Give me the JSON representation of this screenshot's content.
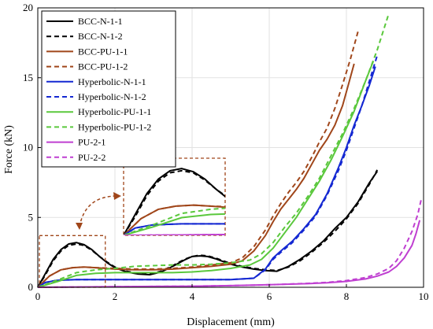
{
  "chart_data": {
    "type": "line",
    "xlabel": "Displacement (mm)",
    "ylabel": "Force (kN)",
    "xlim": [
      0,
      10
    ],
    "ylim": [
      0,
      20
    ],
    "xticks": [
      0,
      2,
      4,
      6,
      8,
      10
    ],
    "yticks": [
      0,
      5,
      10,
      15,
      20
    ],
    "grid": true,
    "legend_position": "top-left",
    "series": [
      {
        "name": "BCC-N-1-1",
        "color": "#000000",
        "dash": "solid",
        "x": [
          0,
          0.2,
          0.4,
          0.6,
          0.8,
          1.0,
          1.2,
          1.4,
          1.6,
          1.8,
          2.0,
          2.3,
          2.6,
          2.9,
          3.2,
          3.5,
          3.8,
          4.0,
          4.2,
          4.4,
          4.6,
          4.8,
          5.0,
          5.3,
          5.6,
          5.9,
          6.2,
          6.5,
          6.8,
          7.1,
          7.4,
          7.7,
          8.0,
          8.3,
          8.6,
          8.8
        ],
        "y": [
          0,
          1.0,
          2.0,
          2.7,
          3.1,
          3.2,
          3.05,
          2.7,
          2.2,
          1.75,
          1.4,
          1.1,
          0.95,
          0.9,
          1.1,
          1.5,
          1.95,
          2.2,
          2.25,
          2.2,
          2.05,
          1.85,
          1.65,
          1.45,
          1.3,
          1.2,
          1.15,
          1.5,
          2.0,
          2.6,
          3.3,
          4.2,
          5.0,
          6.1,
          7.5,
          8.3
        ]
      },
      {
        "name": "BCC-N-1-2",
        "color": "#000000",
        "dash": "dashed",
        "x": [
          0,
          0.2,
          0.4,
          0.6,
          0.8,
          1.0,
          1.2,
          1.4,
          1.6,
          1.8,
          2.0,
          2.3,
          2.6,
          2.9,
          3.2,
          3.5,
          3.8,
          4.0,
          4.2,
          4.4,
          4.6,
          4.8,
          5.0,
          5.3,
          5.6,
          5.9,
          6.2,
          6.5,
          6.8,
          7.1,
          7.4,
          7.7,
          8.0,
          8.3,
          8.6,
          8.8
        ],
        "y": [
          0,
          0.9,
          1.9,
          2.6,
          3.0,
          3.1,
          3.0,
          2.65,
          2.2,
          1.8,
          1.45,
          1.15,
          1.0,
          0.95,
          1.15,
          1.55,
          2.0,
          2.2,
          2.3,
          2.25,
          2.1,
          1.9,
          1.7,
          1.5,
          1.35,
          1.25,
          1.2,
          1.45,
          1.9,
          2.5,
          3.2,
          4.0,
          4.9,
          6.0,
          7.4,
          8.4
        ]
      },
      {
        "name": "BCC-PU-1-1",
        "color": "#a0461a",
        "dash": "solid",
        "x": [
          0,
          0.3,
          0.6,
          0.9,
          1.2,
          1.5,
          2.0,
          2.5,
          3.0,
          3.5,
          4.0,
          4.5,
          5.0,
          5.3,
          5.6,
          5.9,
          6.1,
          6.3,
          6.5,
          6.7,
          6.9,
          7.1,
          7.3,
          7.5,
          7.7,
          7.9,
          8.05,
          8.2
        ],
        "y": [
          0,
          0.8,
          1.25,
          1.4,
          1.45,
          1.4,
          1.3,
          1.25,
          1.25,
          1.3,
          1.4,
          1.5,
          1.65,
          1.9,
          2.6,
          3.7,
          4.7,
          5.6,
          6.3,
          7.0,
          7.8,
          8.8,
          9.8,
          10.6,
          11.6,
          13.0,
          14.5,
          16.0
        ]
      },
      {
        "name": "BCC-PU-1-2",
        "color": "#a0461a",
        "dash": "dashed",
        "x": [
          0,
          0.3,
          0.6,
          0.9,
          1.2,
          1.5,
          2.0,
          2.5,
          3.0,
          3.5,
          4.0,
          4.5,
          5.0,
          5.3,
          5.6,
          5.9,
          6.1,
          6.3,
          6.5,
          6.7,
          6.9,
          7.1,
          7.3,
          7.5,
          7.7,
          7.9,
          8.1,
          8.3
        ],
        "y": [
          0,
          0.8,
          1.25,
          1.4,
          1.45,
          1.4,
          1.35,
          1.3,
          1.3,
          1.35,
          1.45,
          1.6,
          1.75,
          2.1,
          2.9,
          4.1,
          5.1,
          6.0,
          6.8,
          7.5,
          8.3,
          9.3,
          10.4,
          11.4,
          12.8,
          14.5,
          16.3,
          18.3
        ]
      },
      {
        "name": "Hyperbolic-N-1-1",
        "color": "#1428d2",
        "dash": "solid",
        "x": [
          0,
          0.2,
          0.5,
          1.0,
          1.5,
          2.0,
          3.0,
          4.0,
          5.0,
          5.6,
          5.9,
          6.1,
          6.3,
          6.6,
          6.9,
          7.2,
          7.5,
          7.8,
          8.0,
          8.2,
          8.4,
          8.6,
          8.75
        ],
        "y": [
          0,
          0.35,
          0.5,
          0.55,
          0.55,
          0.55,
          0.55,
          0.55,
          0.55,
          0.65,
          1.3,
          2.1,
          2.6,
          3.3,
          4.2,
          5.2,
          6.7,
          8.6,
          10.0,
          11.6,
          13.0,
          14.5,
          15.8
        ]
      },
      {
        "name": "Hyperbolic-N-1-2",
        "color": "#1428d2",
        "dash": "dashed",
        "x": [
          0,
          0.2,
          0.5,
          1.0,
          1.5,
          2.0,
          3.0,
          4.0,
          5.0,
          5.6,
          5.9,
          6.1,
          6.3,
          6.6,
          6.9,
          7.2,
          7.5,
          7.8,
          8.0,
          8.2,
          8.4,
          8.6,
          8.8
        ],
        "y": [
          0,
          0.35,
          0.5,
          0.55,
          0.55,
          0.55,
          0.55,
          0.55,
          0.55,
          0.65,
          1.25,
          2.0,
          2.5,
          3.2,
          4.1,
          5.1,
          6.6,
          8.4,
          9.8,
          11.4,
          13.0,
          14.8,
          16.6
        ]
      },
      {
        "name": "Hyperbolic-PU-1-1",
        "color": "#5ac83c",
        "dash": "solid",
        "x": [
          0,
          0.5,
          1.0,
          1.5,
          2.0,
          2.5,
          3.0,
          3.5,
          4.0,
          4.5,
          5.0,
          5.5,
          5.8,
          6.1,
          6.4,
          6.7,
          7.0,
          7.3,
          7.6,
          7.9,
          8.2,
          8.5,
          8.7
        ],
        "y": [
          0,
          0.4,
          0.85,
          1.0,
          1.05,
          1.05,
          1.05,
          1.05,
          1.1,
          1.2,
          1.35,
          1.6,
          2.0,
          2.8,
          3.9,
          5.0,
          6.3,
          7.6,
          9.1,
          10.8,
          12.6,
          14.8,
          16.2
        ]
      },
      {
        "name": "Hyperbolic-PU-1-2",
        "color": "#5ac83c",
        "dash": "dashed",
        "x": [
          0,
          0.5,
          1.0,
          1.5,
          2.0,
          2.5,
          3.0,
          3.5,
          4.0,
          4.5,
          5.0,
          5.5,
          5.8,
          6.1,
          6.4,
          6.7,
          7.0,
          7.3,
          7.6,
          7.9,
          8.2,
          8.5,
          8.8,
          9.1
        ],
        "y": [
          0,
          0.5,
          1.05,
          1.25,
          1.35,
          1.5,
          1.55,
          1.6,
          1.6,
          1.65,
          1.75,
          1.95,
          2.4,
          3.2,
          4.3,
          5.3,
          6.5,
          7.8,
          9.4,
          11.0,
          12.8,
          14.8,
          17.0,
          19.6
        ]
      },
      {
        "name": "PU-2-1",
        "color": "#bf3fd1",
        "dash": "solid",
        "x": [
          0,
          1.0,
          2.0,
          3.0,
          4.0,
          5.0,
          6.0,
          7.0,
          7.5,
          8.0,
          8.5,
          8.8,
          9.1,
          9.3,
          9.5,
          9.7,
          9.8,
          9.9
        ],
        "y": [
          0,
          0.02,
          0.04,
          0.06,
          0.08,
          0.12,
          0.18,
          0.26,
          0.32,
          0.42,
          0.6,
          0.8,
          1.1,
          1.5,
          2.1,
          3.0,
          3.8,
          4.8
        ]
      },
      {
        "name": "PU-2-2",
        "color": "#bf3fd1",
        "dash": "dashed",
        "x": [
          0,
          1.0,
          2.0,
          3.0,
          4.0,
          5.0,
          6.0,
          7.0,
          7.5,
          8.0,
          8.5,
          8.8,
          9.1,
          9.3,
          9.5,
          9.7,
          9.85,
          9.95
        ],
        "y": [
          0,
          0.02,
          0.04,
          0.06,
          0.08,
          0.12,
          0.18,
          0.28,
          0.35,
          0.48,
          0.7,
          0.95,
          1.35,
          1.9,
          2.8,
          4.0,
          5.2,
          6.4
        ]
      }
    ],
    "inset": {
      "source_xlim": [
        0,
        1.75
      ],
      "source_ylim": [
        0,
        3.7
      ]
    }
  }
}
